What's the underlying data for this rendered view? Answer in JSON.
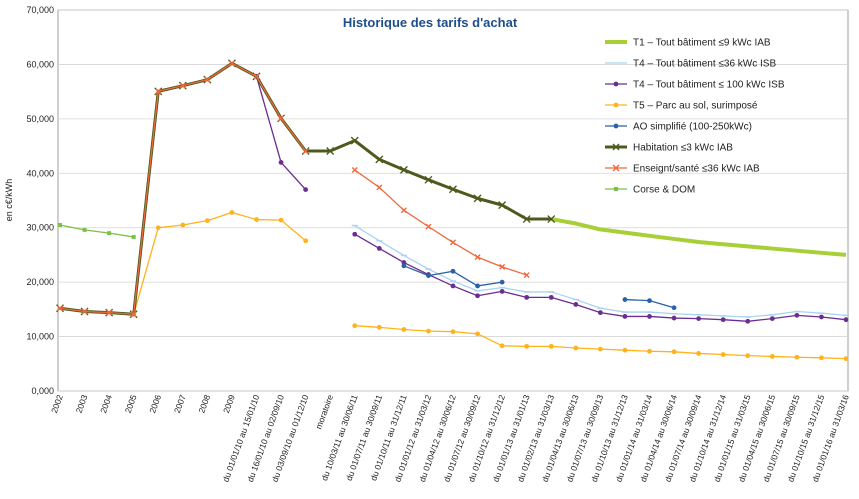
{
  "chart_data": {
    "type": "line",
    "title": "Historique des tarifs d'achat",
    "y_label": "en c€/kWh",
    "categories": [
      "2002",
      "2003",
      "2004",
      "2005",
      "2006",
      "2007",
      "2008",
      "2009",
      "du 01/01/10 au 15/01/10",
      "du 16/01/10 au 02/09/10",
      "du 03/09/10 au 01/12/10",
      "moratoire",
      "du 10/03/11 au 30/06/11",
      "du 01/07/11 au 30/09/11",
      "du 01/10/11 au 31/12/11",
      "du 01/01/12 au 31/03/12",
      "du 01/04/12 au 30/06/12",
      "du 01/07/12 au 30/09/12",
      "du 01/10/12 au 31/12/12",
      "du 01/01/13 au 31/01/13",
      "du 01/02/13 au 31/03/13",
      "du 01/04/13 au 30/06/13",
      "du 01/07/13 au 30/09/13",
      "du 01/10/13 au 31/12/13",
      "du 01/01/14 au 31/03/14",
      "du 01/04/14 au 30/06/14",
      "du 01/07/14 au 30/09/14",
      "du 01/10/14 au 31/12/14",
      "du 01/01/15 au 31/03/15",
      "du 01/04/15 au 30/06/15",
      "du 01/07/15 au 30/09/15",
      "du 01/10/15 au 31/12/15",
      "du 01/01/16 au 31/03/16"
    ],
    "ylim": [
      0,
      70
    ],
    "yticks": [
      {
        "value": 0,
        "label": "0,000"
      },
      {
        "value": 10,
        "label": "10,000"
      },
      {
        "value": 20,
        "label": "20,000"
      },
      {
        "value": 30,
        "label": "30,000"
      },
      {
        "value": 40,
        "label": "40,000"
      },
      {
        "value": 50,
        "label": "50,000"
      },
      {
        "value": 60,
        "label": "60,000"
      },
      {
        "value": 70,
        "label": "70,000"
      }
    ],
    "grid": true,
    "legend": "upper right",
    "series": [
      {
        "name": "T1 – Tout bâtiment ≤9 kWc IAB",
        "color": "#a6cf38",
        "marker": "none",
        "width": 4,
        "values": [
          null,
          null,
          null,
          null,
          null,
          null,
          null,
          null,
          null,
          null,
          null,
          null,
          null,
          null,
          null,
          null,
          null,
          null,
          null,
          null,
          31.59,
          30.77,
          29.69,
          29.1,
          28.51,
          27.94,
          27.38,
          26.97,
          26.57,
          26.17,
          25.78,
          25.39,
          25.0
        ]
      },
      {
        "name": "T4 – Tout bâtiment ≤36 kWc ISB",
        "color": "#a9d3f2",
        "marker": "dash",
        "width": 1.3,
        "values": [
          null,
          null,
          null,
          null,
          null,
          null,
          null,
          null,
          null,
          null,
          null,
          null,
          30.4,
          27.6,
          24.9,
          22.4,
          20.2,
          18.4,
          19.0,
          18.2,
          18.2,
          16.8,
          15.2,
          14.5,
          14.5,
          14.2,
          14.0,
          13.8,
          13.6,
          14.0,
          14.6,
          14.3,
          13.9
        ]
      },
      {
        "name": "T4 – Tout bâtiment ≤ 100 kWc ISB",
        "color": "#6b2d91",
        "marker": "circle",
        "width": 1.3,
        "values": [
          null,
          null,
          null,
          null,
          null,
          null,
          null,
          null,
          57.8,
          42.0,
          37.0,
          null,
          28.8,
          26.2,
          23.6,
          21.4,
          19.3,
          17.5,
          18.3,
          17.2,
          17.2,
          15.9,
          14.4,
          13.7,
          13.7,
          13.4,
          13.3,
          13.1,
          12.8,
          13.3,
          13.9,
          13.6,
          13.1
        ]
      },
      {
        "name": "T5 – Parc au sol, surimposé",
        "color": "#ffb21c",
        "marker": "circle",
        "width": 1.3,
        "values": [
          null,
          null,
          null,
          14.1,
          30.0,
          30.5,
          31.3,
          32.8,
          31.5,
          31.4,
          27.6,
          null,
          12.0,
          11.7,
          11.3,
          11.0,
          10.9,
          10.5,
          8.3,
          8.2,
          8.2,
          7.9,
          7.7,
          7.5,
          7.3,
          7.2,
          6.9,
          6.7,
          6.5,
          6.35,
          6.2,
          6.1,
          5.95
        ]
      },
      {
        "name": "AO simplifié (100-250kWc)",
        "color": "#2962a6",
        "marker": "circle",
        "width": 1.3,
        "values": [
          null,
          null,
          null,
          null,
          null,
          null,
          null,
          null,
          null,
          null,
          null,
          null,
          null,
          null,
          23.0,
          21.2,
          22.0,
          19.3,
          20.0,
          null,
          null,
          null,
          null,
          16.8,
          16.6,
          15.3,
          null,
          null,
          null,
          null,
          null,
          null,
          null
        ]
      },
      {
        "name": "Habitation ≤3 kWc IAB",
        "color": "#4d5a1d",
        "marker": "x",
        "width": 3,
        "values": [
          15.2,
          14.6,
          14.4,
          14.1,
          55.05,
          56.1,
          57.2,
          60.2,
          57.8,
          50.1,
          44.1,
          44.1,
          46.0,
          42.55,
          40.63,
          38.8,
          37.06,
          35.39,
          34.15,
          31.59,
          31.59,
          null,
          null,
          null,
          null,
          null,
          null,
          null,
          null,
          null,
          null,
          null,
          null
        ]
      },
      {
        "name": "Enseignt/santé ≤36 kWc IAB",
        "color": "#f0683a",
        "marker": "xs",
        "width": 1.3,
        "values": [
          15.2,
          14.6,
          14.4,
          14.1,
          55.05,
          56.1,
          57.2,
          60.2,
          57.8,
          50.1,
          44.1,
          null,
          40.6,
          37.4,
          33.2,
          30.2,
          27.3,
          24.6,
          22.8,
          21.3,
          null,
          null,
          null,
          null,
          null,
          null,
          null,
          null,
          null,
          null,
          null,
          null,
          null
        ]
      },
      {
        "name": "Corse & DOM",
        "color": "#7cc048",
        "marker": "square",
        "width": 1.3,
        "values": [
          30.5,
          29.6,
          29.0,
          28.3,
          null,
          null,
          null,
          null,
          null,
          null,
          null,
          null,
          null,
          null,
          null,
          null,
          null,
          null,
          null,
          null,
          null,
          null,
          null,
          null,
          null,
          null,
          null,
          null,
          null,
          null,
          null,
          null,
          null
        ]
      }
    ]
  }
}
